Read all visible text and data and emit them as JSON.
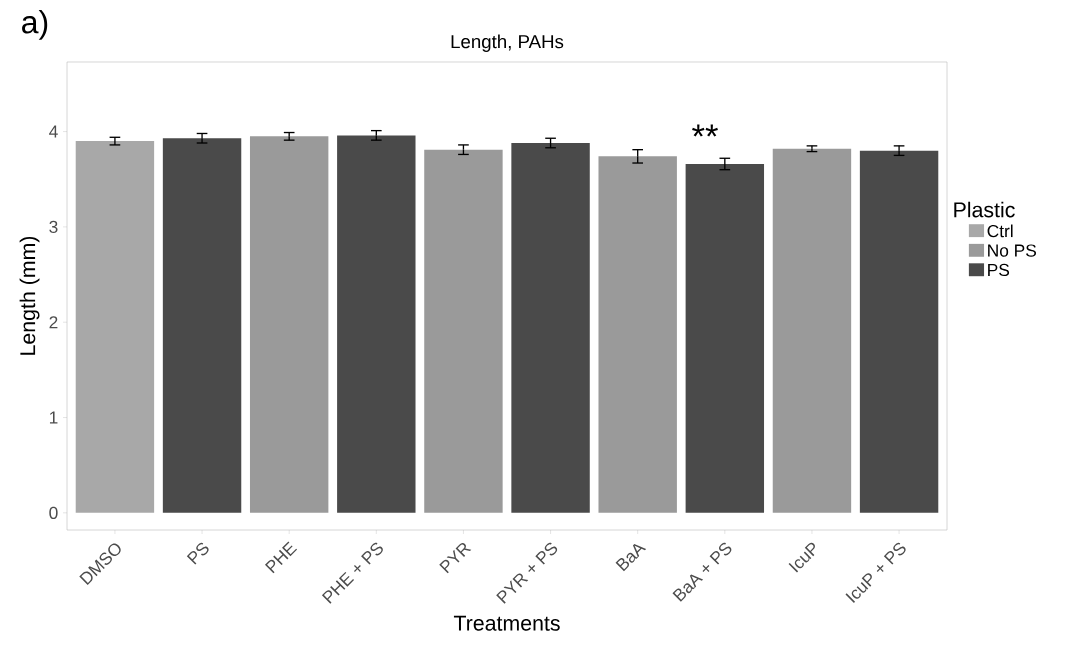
{
  "chart_data": {
    "type": "bar",
    "title": "Length, PAHs",
    "xlabel": "Treatments",
    "ylabel": "Length (mm)",
    "legend_title": "Plastic",
    "categories": [
      "DMSO",
      "PS",
      "PHE",
      "PHE  + PS",
      "PYR",
      "PYR + PS",
      "BaA",
      "BaA + PS",
      "IcuP",
      "IcuP + PS"
    ],
    "series": [
      {
        "name": "Ctrl",
        "color": "#a8a8a8",
        "values": [
          3.9,
          null,
          null,
          null,
          null,
          null,
          null,
          null,
          null,
          null
        ],
        "errors": [
          0.04,
          null,
          null,
          null,
          null,
          null,
          null,
          null,
          null,
          null
        ]
      },
      {
        "name": "No PS",
        "color": "#9a9a9a",
        "values": [
          null,
          null,
          3.95,
          null,
          3.81,
          null,
          3.74,
          null,
          3.82,
          null
        ],
        "errors": [
          null,
          null,
          0.04,
          null,
          0.05,
          null,
          0.07,
          null,
          0.03,
          null
        ]
      },
      {
        "name": "PS",
        "color": "#4a4a4a",
        "values": [
          null,
          3.93,
          null,
          3.96,
          null,
          3.88,
          null,
          3.66,
          null,
          3.8
        ],
        "errors": [
          null,
          0.05,
          null,
          0.05,
          null,
          0.05,
          null,
          0.06,
          null,
          0.05
        ]
      }
    ],
    "ylim": [
      -0.18,
      4.73
    ],
    "yticks": [
      0,
      1,
      2,
      3,
      4
    ],
    "grid": false,
    "legend": "right",
    "annotations": [
      "a)",
      "**"
    ]
  }
}
